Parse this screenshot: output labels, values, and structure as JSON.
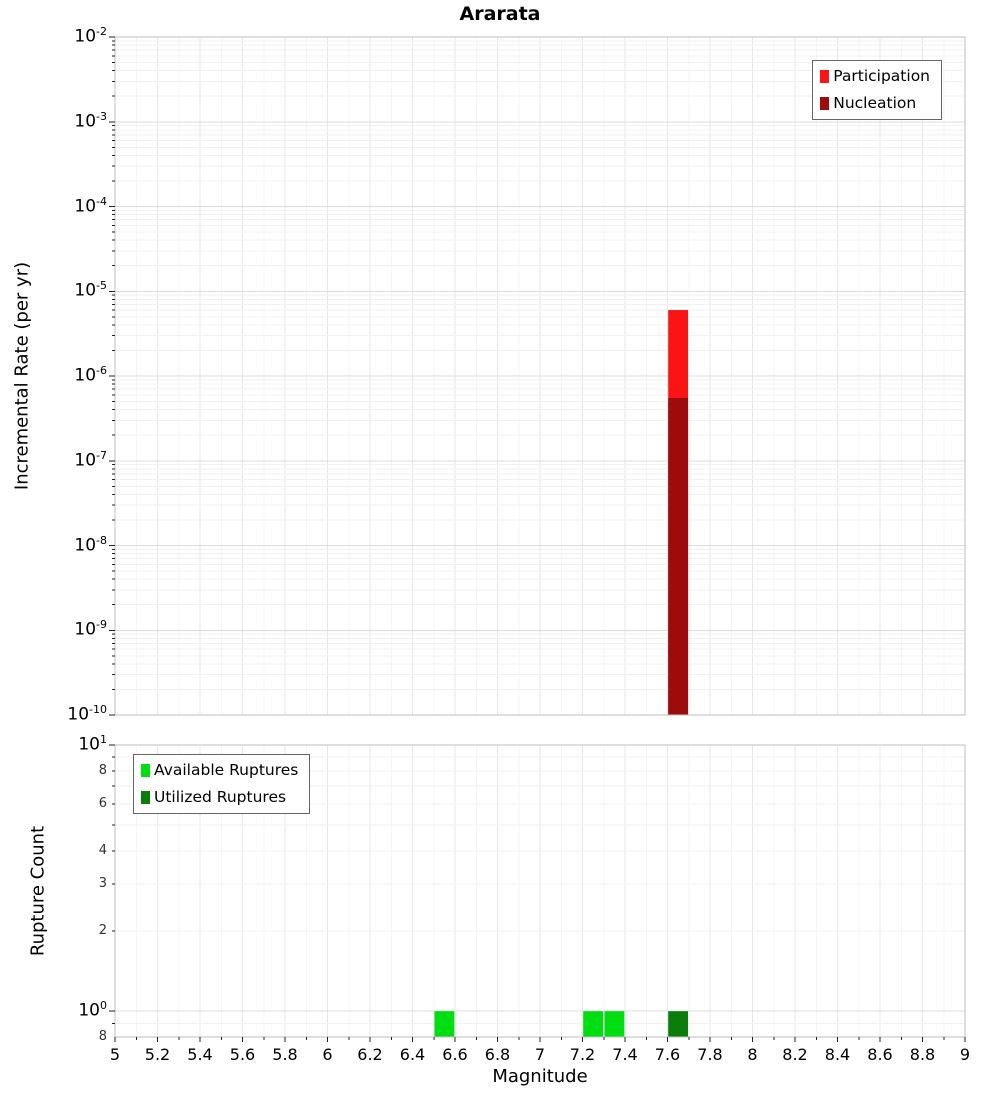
{
  "title": "Ararata",
  "axes": {
    "x_label": "Magnitude",
    "top_y_label": "Incremental Rate (per yr)",
    "bottom_y_label": "Rupture Count"
  },
  "chart_data": [
    {
      "type": "bar",
      "title": "Ararata",
      "xlabel": "Magnitude",
      "ylabel": "Incremental Rate (per yr)",
      "x_scale": "linear",
      "y_scale": "log",
      "xlim": [
        5,
        9
      ],
      "ylim": [
        1e-10,
        0.01
      ],
      "x_tick_step": 0.2,
      "x_tick_labels": [
        "5",
        "5.2",
        "5.4",
        "5.6",
        "5.8",
        "6",
        "6.2",
        "6.4",
        "6.6",
        "6.8",
        "7",
        "7.2",
        "7.4",
        "7.6",
        "7.8",
        "8",
        "8.2",
        "8.4",
        "8.6",
        "8.8",
        "9"
      ],
      "y_tick_exponents": [
        -2,
        -3,
        -4,
        -5,
        -6,
        -7,
        -8,
        -9,
        -10
      ],
      "bar_width": 0.1,
      "grid": true,
      "legend_position": "top-right",
      "series": [
        {
          "name": "Participation",
          "color": "#fa1414",
          "points": [
            {
              "x": 7.65,
              "y": 6e-06
            }
          ]
        },
        {
          "name": "Nucleation",
          "color": "#9c0c0c",
          "points": [
            {
              "x": 7.65,
              "y": 5.5e-07
            }
          ]
        }
      ]
    },
    {
      "type": "bar",
      "title": "",
      "xlabel": "Magnitude",
      "ylabel": "Rupture Count",
      "x_scale": "linear",
      "y_scale": "log",
      "xlim": [
        5,
        9
      ],
      "ylim": [
        0.8,
        10
      ],
      "x_tick_step": 0.2,
      "x_tick_labels": [
        "5",
        "5.2",
        "5.4",
        "5.6",
        "5.8",
        "6",
        "6.2",
        "6.4",
        "6.6",
        "6.8",
        "7",
        "7.2",
        "7.4",
        "7.6",
        "7.8",
        "8",
        "8.2",
        "8.4",
        "8.6",
        "8.8",
        "9"
      ],
      "y_ticks": [
        {
          "v": 10,
          "base": "10",
          "sup": "1",
          "major": true
        },
        {
          "v": 8,
          "base": "8",
          "major": false
        },
        {
          "v": 6,
          "base": "6",
          "major": false
        },
        {
          "v": 4,
          "base": "4",
          "major": false
        },
        {
          "v": 3,
          "base": "3",
          "major": false
        },
        {
          "v": 2,
          "base": "2",
          "major": false
        },
        {
          "v": 1,
          "base": "10",
          "sup": "0",
          "major": true
        },
        {
          "v": 0.8,
          "base": "8",
          "major": false
        }
      ],
      "bar_width": 0.1,
      "grid": true,
      "legend_position": "top-left",
      "series": [
        {
          "name": "Available Ruptures",
          "color": "#00dd11",
          "points": [
            {
              "x": 6.55,
              "y": 1
            },
            {
              "x": 7.25,
              "y": 1
            },
            {
              "x": 7.35,
              "y": 1
            }
          ]
        },
        {
          "name": "Utilized Ruptures",
          "color": "#0a7d0a",
          "points": [
            {
              "x": 7.65,
              "y": 1
            }
          ]
        }
      ]
    }
  ]
}
